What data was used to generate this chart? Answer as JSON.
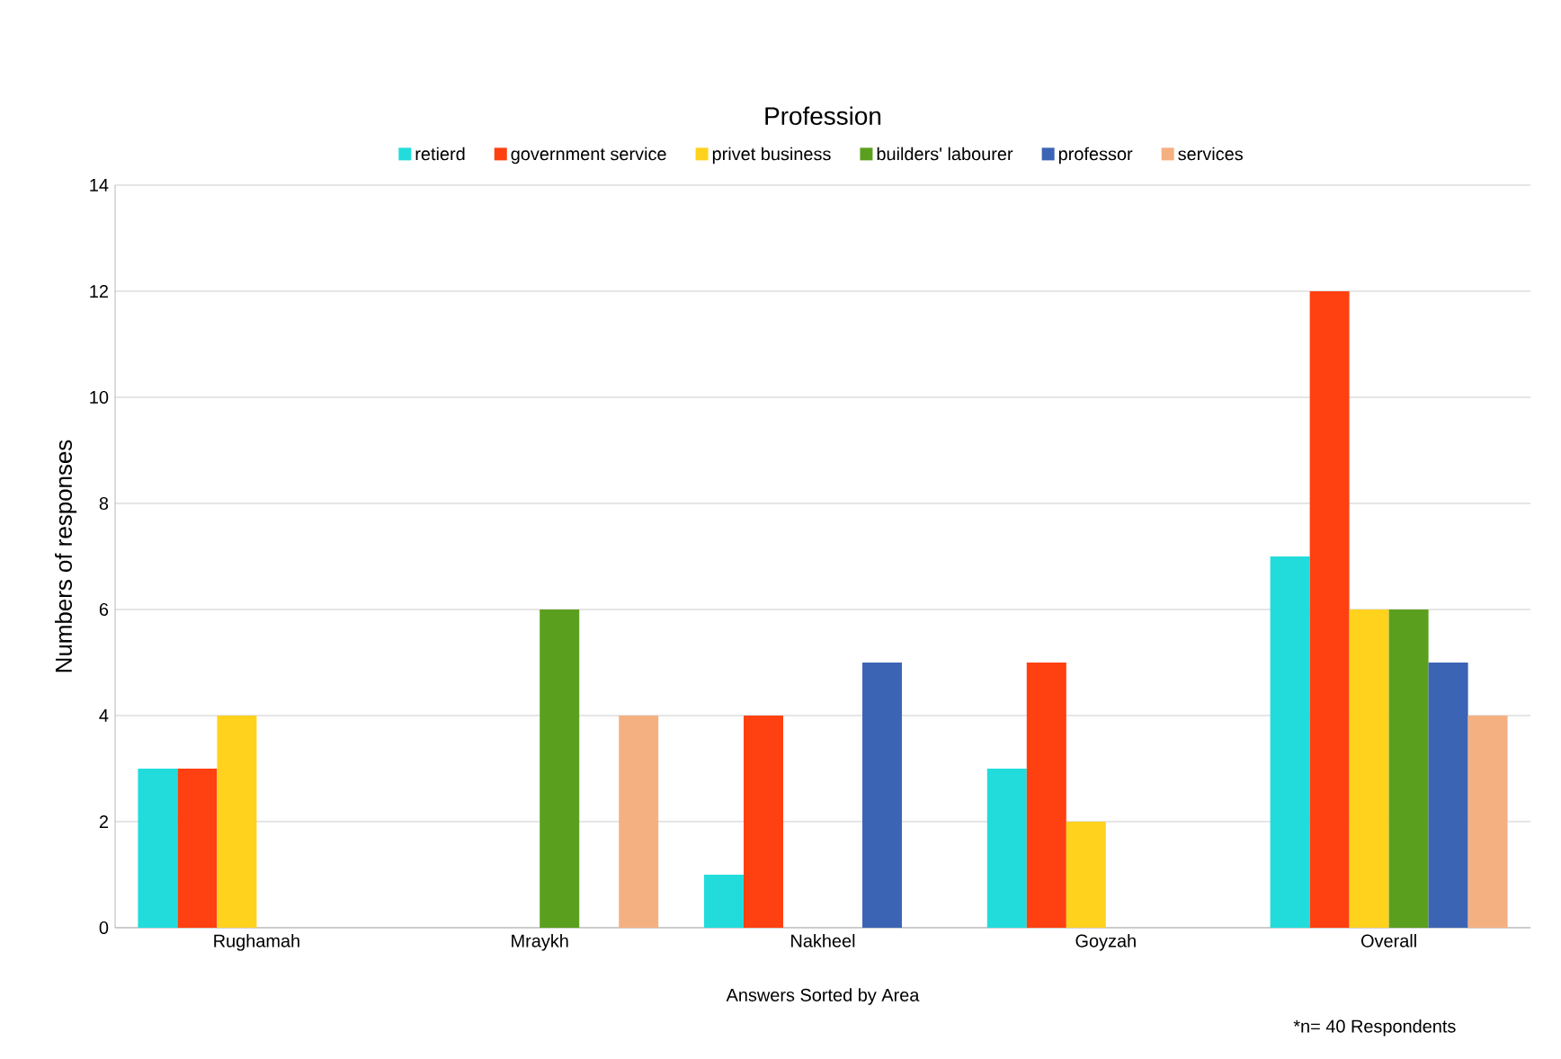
{
  "chart_data": {
    "type": "bar",
    "title": "Profession",
    "xlabel": "Answers Sorted by Area",
    "ylabel": "Numbers of responses",
    "annotations": [
      "*n= 40 Respondents"
    ],
    "categories": [
      "Rughamah",
      "Mraykh",
      "Nakheel",
      "Goyzah",
      "Overall"
    ],
    "series": [
      {
        "name": "retierd",
        "color": "#22dcdc",
        "values": [
          3,
          0,
          1,
          3,
          7
        ]
      },
      {
        "name": "government service",
        "color": "#ff4010",
        "values": [
          3,
          0,
          4,
          5,
          12
        ]
      },
      {
        "name": "privet business",
        "color": "#ffd21e",
        "values": [
          4,
          0,
          0,
          2,
          6
        ]
      },
      {
        "name": "builders' labourer",
        "color": "#5aa01e",
        "values": [
          0,
          6,
          0,
          0,
          6
        ]
      },
      {
        "name": "professor",
        "color": "#3c64b4",
        "values": [
          0,
          0,
          5,
          0,
          5
        ]
      },
      {
        "name": "services",
        "color": "#f5b082",
        "values": [
          0,
          4,
          0,
          0,
          4
        ]
      }
    ],
    "ylim": [
      0,
      14
    ],
    "yticks": [
      0,
      2,
      4,
      6,
      8,
      10,
      12,
      14
    ],
    "grid": "y",
    "legend": "top"
  }
}
